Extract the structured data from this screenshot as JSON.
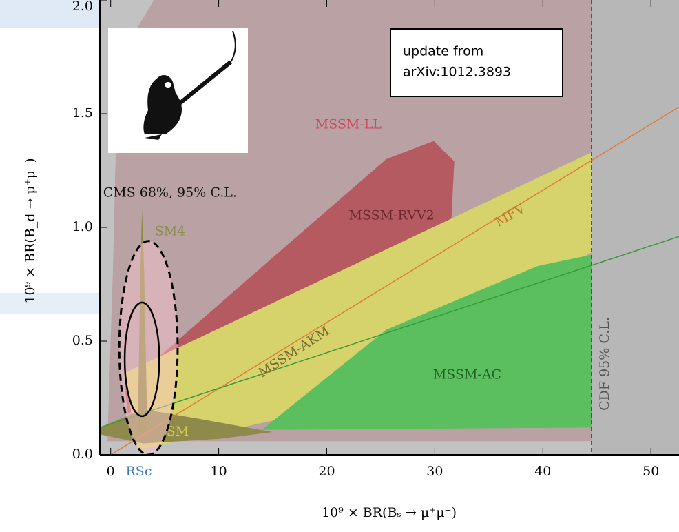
{
  "chart_data": {
    "type": "region",
    "x_label": "10⁹ × BR(Bₛ → μ⁺μ⁻)",
    "y_label": "10⁹ × BR(B_d → μ⁺μ⁻)",
    "xlim": [
      -1,
      52.6
    ],
    "ylim": [
      0,
      2.0
    ],
    "xticks": [
      0,
      10,
      20,
      30,
      40,
      50
    ],
    "yticks": [
      {
        "value": 0,
        "label": "0.0"
      },
      0.5,
      {
        "value": 1,
        "label": "1.0"
      },
      1.5,
      {
        "value": 2,
        "label": "2.0"
      }
    ],
    "regions": [
      {
        "label": "MSSM-LL",
        "color": "#b9a1a4",
        "x": [
          -0.3,
          52.6,
          52.6,
          4,
          1.5,
          0.5,
          0.2
        ],
        "y": [
          0.06,
          0.06,
          2.0,
          2.0,
          1.8,
          1.4,
          0.8
        ]
      },
      {
        "label": "MSSM-RVV2",
        "color": "#b55a60",
        "x": [
          1.3,
          15.3,
          25.5,
          29.9,
          31.8,
          31.5,
          25.5,
          15.3,
          5.7,
          1.6
        ],
        "y": [
          0.3,
          0.88,
          1.3,
          1.38,
          1.29,
          1.0,
          0.85,
          0.58,
          0.3,
          0.18
        ]
      },
      {
        "label": "MSSM-AKM",
        "color": "#d7d36c",
        "x": [
          1.3,
          44.5,
          44.5,
          17.8,
          2.5
        ],
        "y": [
          0.36,
          1.33,
          0.89,
          0.18,
          0.02
        ]
      },
      {
        "label": "MSSM-AC",
        "color": "#5cbf5f",
        "x": [
          14,
          25.5,
          39.5,
          44.5,
          44.5
        ],
        "y": [
          0.11,
          0.55,
          0.83,
          0.88,
          0.12
        ]
      },
      {
        "label": "SM",
        "color": "#8e8a4c",
        "x": [
          -1,
          3,
          8,
          15,
          10,
          3,
          -1
        ],
        "y": [
          0.12,
          0.2,
          0.16,
          0.1,
          0.07,
          0.05,
          0.09
        ]
      },
      {
        "label": "SM4",
        "color": "#8a8a3c",
        "x": [
          2.5,
          2.75,
          2.9,
          3.1,
          3.4
        ],
        "y": [
          0.1,
          0.8,
          1.08,
          0.8,
          0.1
        ]
      }
    ],
    "lines": [
      {
        "label": "MFV",
        "color": "#e07a3a",
        "x": [
          0,
          52.6
        ],
        "y": [
          0,
          1.53
        ]
      },
      {
        "color": "#3a9a3a",
        "x": [
          -1,
          52.6
        ],
        "y": [
          0.12,
          0.96
        ]
      }
    ],
    "contours": [
      {
        "cl": 95,
        "x": 3.5,
        "y": 0.47,
        "rx": 2.7,
        "ry": 0.47
      },
      {
        "cl": 68,
        "x": 2.9,
        "y": 0.42,
        "rx": 1.6,
        "ry": 0.25
      }
    ],
    "contour_label": "CMS 68%, 95% C.L.",
    "cdf_limit": {
      "x": 44.5,
      "label": "CDF 95% C.L."
    },
    "x_annotation": {
      "label": "RSc",
      "x": 2.6
    },
    "note": [
      "update from",
      "arXiv:1012.3893"
    ]
  }
}
